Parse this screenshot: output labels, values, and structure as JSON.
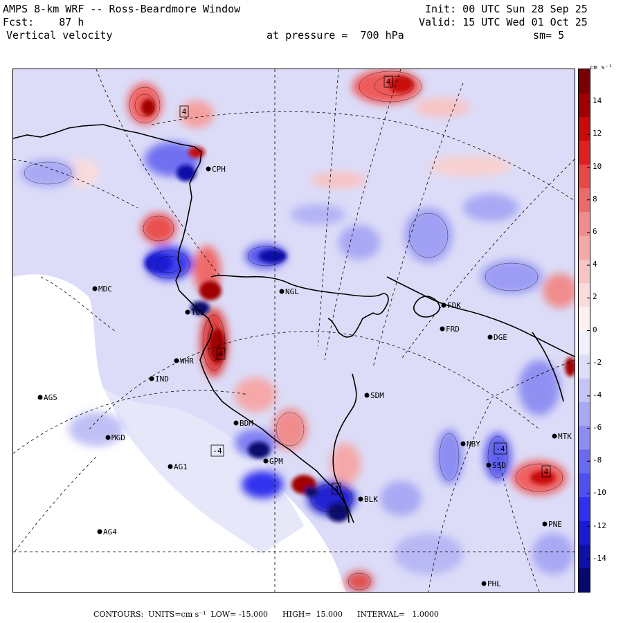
{
  "header": {
    "model": "AMPS 8-km WRF -- Ross-Beardmore Window",
    "forecast": "Fcst:    87 h",
    "variable": "Vertical velocity",
    "init": "Init: 00 UTC Sun 28 Sep 25",
    "valid": "Valid: 15 UTC Wed 01 Oct 25",
    "pressure": "at pressure =  700 hPa",
    "smoothing": "sm= 5"
  },
  "colorbar": {
    "units": "cm s⁻¹",
    "ticks": [
      "14",
      "12",
      "10",
      "8",
      "6",
      "4",
      "2",
      "0",
      "-2",
      "-4",
      "-6",
      "-8",
      "-10",
      "-12",
      "-14"
    ],
    "tick_values": [
      14,
      12,
      10,
      8,
      6,
      4,
      2,
      0,
      -2,
      -4,
      -6,
      -8,
      -10,
      -12,
      -14
    ],
    "min": -16,
    "max": 16,
    "colors_low_to_high": [
      "#08086e",
      "#1010a8",
      "#1a1ad4",
      "#3030f0",
      "#5050f0",
      "#6a6af0",
      "#8c8cf2",
      "#a8a8f4",
      "#c4c4f6",
      "#dedef9",
      "#f0f0fc",
      "#fdf0f0",
      "#fbdcdc",
      "#f8c4c4",
      "#f5a8a8",
      "#f08c8c",
      "#ec6a6a",
      "#e84848",
      "#e02020",
      "#c80a0a",
      "#a00000",
      "#780000"
    ]
  },
  "stations": [
    {
      "code": "CPH",
      "lon": 0,
      "lat": 0,
      "v": [
        300,
        243
      ]
    },
    {
      "code": "MDC",
      "v": [
        136,
        416
      ]
    },
    {
      "code": "NGL",
      "v": [
        406,
        420
      ]
    },
    {
      "code": "FDK",
      "v": [
        640,
        440
      ]
    },
    {
      "code": "FRD",
      "v": [
        638,
        474
      ]
    },
    {
      "code": "DGE",
      "v": [
        707,
        486
      ]
    },
    {
      "code": "TOD",
      "v": [
        270,
        450
      ]
    },
    {
      "code": "WHR",
      "v": [
        254,
        520
      ]
    },
    {
      "code": "IND",
      "v": [
        218,
        546
      ]
    },
    {
      "code": "AG5",
      "v": [
        57,
        573
      ]
    },
    {
      "code": "SDM",
      "v": [
        529,
        570
      ]
    },
    {
      "code": "MGD",
      "v": [
        155,
        631
      ]
    },
    {
      "code": "BDM",
      "v": [
        340,
        610
      ]
    },
    {
      "code": "NBY",
      "v": [
        668,
        640
      ]
    },
    {
      "code": "MTK",
      "v": [
        800,
        629
      ]
    },
    {
      "code": "GPM",
      "v": [
        383,
        665
      ]
    },
    {
      "code": "AG1",
      "v": [
        245,
        673
      ]
    },
    {
      "code": "SSD",
      "v": [
        705,
        671
      ]
    },
    {
      "code": "BLK",
      "v": [
        520,
        720
      ]
    },
    {
      "code": "AG4",
      "v": [
        143,
        767
      ]
    },
    {
      "code": "PNE",
      "v": [
        786,
        756
      ]
    },
    {
      "code": "PHL",
      "v": [
        698,
        842
      ]
    }
  ],
  "contour_labels": [
    {
      "text": "4",
      "v": [
        265,
        160
      ]
    },
    {
      "text": "4",
      "v": [
        560,
        117
      ]
    },
    {
      "text": "4",
      "v": [
        318,
        510
      ]
    },
    {
      "text": "-4",
      "v": [
        313,
        650
      ]
    },
    {
      "text": "4",
      "v": [
        485,
        705
      ]
    },
    {
      "text": "-4",
      "v": [
        722,
        647
      ]
    },
    {
      "text": "4",
      "v": [
        788,
        680
      ]
    }
  ],
  "footer": {
    "contours": "CONTOURS:  UNITS=cm s⁻¹  LOW= -15.000      HIGH=  15.000      INTERVAL=   1.0000"
  }
}
